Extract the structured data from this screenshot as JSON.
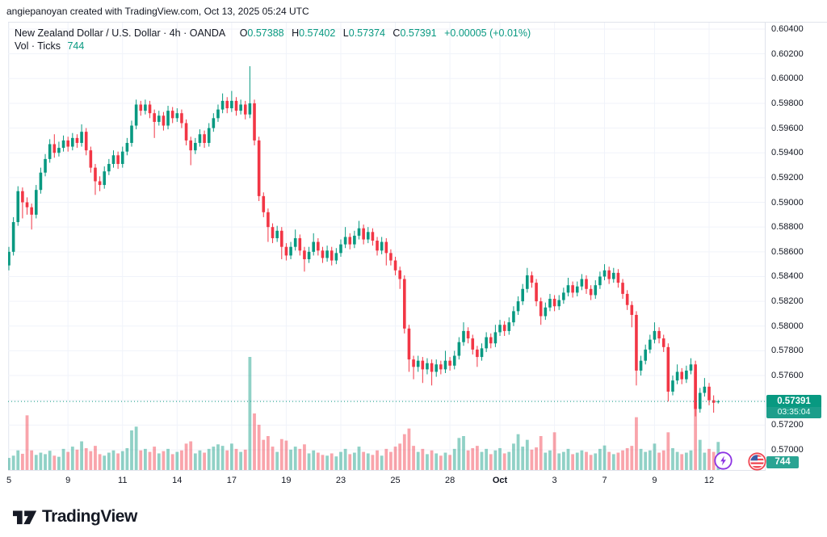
{
  "attribution": "angiepanoyan created with TradingView.com, Oct 13, 2025 05:24 UTC",
  "header": {
    "symbol_title": "New Zealand Dollar / U.S. Dollar · 4h · OANDA",
    "ohlc": {
      "o_label": "O",
      "o": "0.57388",
      "h_label": "H",
      "h": "0.57402",
      "l_label": "L",
      "l": "0.57374",
      "c_label": "C",
      "c": "0.57391",
      "change": "+0.00005 (+0.01%)"
    },
    "indicator_label": "Vol · Ticks",
    "indicator_value": "744"
  },
  "price_axis": {
    "labels": [
      "0.60400",
      "0.60200",
      "0.60000",
      "0.59800",
      "0.59600",
      "0.59400",
      "0.59200",
      "0.59000",
      "0.58800",
      "0.58600",
      "0.58400",
      "0.58200",
      "0.58000",
      "0.57800",
      "0.57600",
      "0.57200",
      "0.57000"
    ],
    "price_badge": {
      "price": "0.57391",
      "countdown": "03:35:04"
    },
    "volume_badge": "744"
  },
  "time_axis": {
    "ticks": [
      {
        "label": "5",
        "bar": 0
      },
      {
        "label": "9",
        "bar": 13
      },
      {
        "label": "11",
        "bar": 25
      },
      {
        "label": "14",
        "bar": 37
      },
      {
        "label": "17",
        "bar": 49
      },
      {
        "label": "19",
        "bar": 61
      },
      {
        "label": "23",
        "bar": 73
      },
      {
        "label": "25",
        "bar": 85
      },
      {
        "label": "28",
        "bar": 97
      },
      {
        "label": "Oct",
        "bar": 108,
        "bold": true
      },
      {
        "label": "3",
        "bar": 120
      },
      {
        "label": "7",
        "bar": 131
      },
      {
        "label": "9",
        "bar": 142
      },
      {
        "label": "12",
        "bar": 154
      }
    ]
  },
  "footer": {
    "logo_text": "TradingView"
  },
  "colors": {
    "up": "#089981",
    "down": "#f23645",
    "grid": "#f0f3fa",
    "border": "#e0e3eb",
    "text": "#131722",
    "accent": "#089981",
    "price_line": "#089981",
    "purple_icon": "#8c32e3",
    "flag_ring": "#ef4551",
    "flag_blue": "#3c5da8"
  },
  "chart_data": {
    "type": "candlestick",
    "title": "New Zealand Dollar / U.S. Dollar",
    "timeframe": "4h",
    "exchange": "OANDA",
    "volume_indicator": "Vol · Ticks",
    "current_price": 0.57391,
    "current_volume": 744,
    "price_axis_range": [
      0.57,
      0.604
    ],
    "grid_step": 0.002,
    "x_range_labels": [
      "Sep 5",
      "Oct 13"
    ],
    "candles": [
      [
        0.5849,
        0.5864,
        0.5845,
        0.586
      ],
      [
        0.586,
        0.5888,
        0.5857,
        0.5884
      ],
      [
        0.5884,
        0.5913,
        0.5881,
        0.5909
      ],
      [
        0.5909,
        0.5912,
        0.5887,
        0.59
      ],
      [
        0.59,
        0.5904,
        0.589,
        0.5896
      ],
      [
        0.5896,
        0.5899,
        0.5878,
        0.589
      ],
      [
        0.589,
        0.5914,
        0.5887,
        0.591
      ],
      [
        0.591,
        0.5928,
        0.5907,
        0.5924
      ],
      [
        0.5924,
        0.5939,
        0.5921,
        0.5935
      ],
      [
        0.5935,
        0.5951,
        0.5932,
        0.5947
      ],
      [
        0.5947,
        0.5955,
        0.5936,
        0.594
      ],
      [
        0.594,
        0.5949,
        0.5937,
        0.5944
      ],
      [
        0.5944,
        0.5954,
        0.5941,
        0.595
      ],
      [
        0.595,
        0.5953,
        0.5941,
        0.5945
      ],
      [
        0.5945,
        0.5956,
        0.5942,
        0.5952
      ],
      [
        0.5952,
        0.5955,
        0.5944,
        0.5948
      ],
      [
        0.5948,
        0.5963,
        0.5945,
        0.5957
      ],
      [
        0.5957,
        0.596,
        0.5938,
        0.5942
      ],
      [
        0.5942,
        0.5945,
        0.5924,
        0.5928
      ],
      [
        0.5928,
        0.5931,
        0.5906,
        0.5917
      ],
      [
        0.5917,
        0.5921,
        0.5909,
        0.5914
      ],
      [
        0.5914,
        0.5929,
        0.5911,
        0.5925
      ],
      [
        0.5925,
        0.5935,
        0.5922,
        0.5931
      ],
      [
        0.5931,
        0.5942,
        0.5928,
        0.5938
      ],
      [
        0.5938,
        0.5941,
        0.5927,
        0.5931
      ],
      [
        0.5931,
        0.5945,
        0.5928,
        0.5941
      ],
      [
        0.5941,
        0.5952,
        0.5938,
        0.5948
      ],
      [
        0.5948,
        0.5966,
        0.5945,
        0.5962
      ],
      [
        0.5962,
        0.5983,
        0.5959,
        0.5979
      ],
      [
        0.5979,
        0.5982,
        0.597,
        0.5974
      ],
      [
        0.5974,
        0.5983,
        0.5971,
        0.5979
      ],
      [
        0.5979,
        0.5982,
        0.5968,
        0.5972
      ],
      [
        0.5972,
        0.5975,
        0.5952,
        0.5965
      ],
      [
        0.5965,
        0.5974,
        0.5962,
        0.597
      ],
      [
        0.597,
        0.5973,
        0.5958,
        0.5962
      ],
      [
        0.5962,
        0.5978,
        0.5959,
        0.5974
      ],
      [
        0.5974,
        0.5977,
        0.5964,
        0.5968
      ],
      [
        0.5968,
        0.5976,
        0.5965,
        0.5972
      ],
      [
        0.5972,
        0.5975,
        0.596,
        0.5964
      ],
      [
        0.5964,
        0.5967,
        0.5946,
        0.595
      ],
      [
        0.595,
        0.5953,
        0.593,
        0.5942
      ],
      [
        0.5942,
        0.5952,
        0.5939,
        0.5948
      ],
      [
        0.5948,
        0.5959,
        0.5945,
        0.5955
      ],
      [
        0.5955,
        0.5958,
        0.5944,
        0.5948
      ],
      [
        0.5948,
        0.5964,
        0.5945,
        0.596
      ],
      [
        0.596,
        0.5972,
        0.5957,
        0.5968
      ],
      [
        0.5968,
        0.5979,
        0.5965,
        0.5975
      ],
      [
        0.5975,
        0.5988,
        0.5972,
        0.5982
      ],
      [
        0.5982,
        0.5985,
        0.5972,
        0.5976
      ],
      [
        0.5976,
        0.599,
        0.5973,
        0.5982
      ],
      [
        0.5982,
        0.5985,
        0.597,
        0.5974
      ],
      [
        0.5974,
        0.5983,
        0.5971,
        0.5979
      ],
      [
        0.5979,
        0.5982,
        0.5967,
        0.5971
      ],
      [
        0.5971,
        0.601,
        0.5968,
        0.598
      ],
      [
        0.598,
        0.5983,
        0.5946,
        0.595
      ],
      [
        0.595,
        0.5953,
        0.5901,
        0.5905
      ],
      [
        0.5905,
        0.5908,
        0.5888,
        0.5892
      ],
      [
        0.5892,
        0.5895,
        0.5868,
        0.588
      ],
      [
        0.588,
        0.5883,
        0.5867,
        0.5871
      ],
      [
        0.5871,
        0.5881,
        0.5868,
        0.5877
      ],
      [
        0.5877,
        0.588,
        0.5854,
        0.5864
      ],
      [
        0.5864,
        0.5867,
        0.5853,
        0.5857
      ],
      [
        0.5857,
        0.5868,
        0.5854,
        0.5864
      ],
      [
        0.5864,
        0.5878,
        0.5861,
        0.5871
      ],
      [
        0.5871,
        0.5874,
        0.5857,
        0.5861
      ],
      [
        0.5861,
        0.5864,
        0.5844,
        0.5854
      ],
      [
        0.5854,
        0.5864,
        0.5851,
        0.586
      ],
      [
        0.586,
        0.5875,
        0.5857,
        0.5868
      ],
      [
        0.5868,
        0.5871,
        0.5857,
        0.5861
      ],
      [
        0.5861,
        0.5864,
        0.5851,
        0.5855
      ],
      [
        0.5855,
        0.5865,
        0.5852,
        0.5861
      ],
      [
        0.5861,
        0.5864,
        0.5849,
        0.5853
      ],
      [
        0.5853,
        0.5863,
        0.585,
        0.5859
      ],
      [
        0.5859,
        0.587,
        0.5856,
        0.5866
      ],
      [
        0.5866,
        0.588,
        0.5863,
        0.5872
      ],
      [
        0.5872,
        0.5875,
        0.5862,
        0.5866
      ],
      [
        0.5866,
        0.5877,
        0.5863,
        0.5873
      ],
      [
        0.5873,
        0.5885,
        0.587,
        0.5879
      ],
      [
        0.5879,
        0.5882,
        0.5866,
        0.587
      ],
      [
        0.587,
        0.588,
        0.5867,
        0.5876
      ],
      [
        0.5876,
        0.5879,
        0.5865,
        0.5869
      ],
      [
        0.5869,
        0.5872,
        0.5857,
        0.5861
      ],
      [
        0.5861,
        0.5872,
        0.5858,
        0.5868
      ],
      [
        0.5868,
        0.5871,
        0.5849,
        0.5859
      ],
      [
        0.5859,
        0.5862,
        0.5849,
        0.5853
      ],
      [
        0.5853,
        0.5856,
        0.5841,
        0.5845
      ],
      [
        0.5845,
        0.5848,
        0.583,
        0.5838
      ],
      [
        0.5838,
        0.5841,
        0.5794,
        0.5798
      ],
      [
        0.5798,
        0.5801,
        0.5763,
        0.5773
      ],
      [
        0.5773,
        0.5776,
        0.5757,
        0.5767
      ],
      [
        0.5767,
        0.5776,
        0.5763,
        0.5772
      ],
      [
        0.5772,
        0.5775,
        0.5754,
        0.5765
      ],
      [
        0.5765,
        0.5774,
        0.5761,
        0.577
      ],
      [
        0.577,
        0.5773,
        0.5752,
        0.5763
      ],
      [
        0.5763,
        0.5773,
        0.5759,
        0.5769
      ],
      [
        0.5769,
        0.5772,
        0.5761,
        0.5765
      ],
      [
        0.5765,
        0.578,
        0.5762,
        0.5772
      ],
      [
        0.5772,
        0.5775,
        0.5764,
        0.5768
      ],
      [
        0.5768,
        0.578,
        0.5765,
        0.5776
      ],
      [
        0.5776,
        0.5791,
        0.5773,
        0.5787
      ],
      [
        0.5787,
        0.5803,
        0.5784,
        0.5796
      ],
      [
        0.5796,
        0.5799,
        0.5786,
        0.579
      ],
      [
        0.579,
        0.5793,
        0.5777,
        0.5781
      ],
      [
        0.5781,
        0.5784,
        0.5767,
        0.5775
      ],
      [
        0.5775,
        0.5786,
        0.5772,
        0.5782
      ],
      [
        0.5782,
        0.5795,
        0.5779,
        0.5791
      ],
      [
        0.5791,
        0.5794,
        0.5782,
        0.5786
      ],
      [
        0.5786,
        0.5801,
        0.5783,
        0.5795
      ],
      [
        0.5795,
        0.5805,
        0.5792,
        0.5801
      ],
      [
        0.5801,
        0.5804,
        0.5792,
        0.5796
      ],
      [
        0.5796,
        0.5807,
        0.5793,
        0.5803
      ],
      [
        0.5803,
        0.5816,
        0.58,
        0.5812
      ],
      [
        0.5812,
        0.5824,
        0.5809,
        0.582
      ],
      [
        0.582,
        0.5834,
        0.5817,
        0.583
      ],
      [
        0.583,
        0.5847,
        0.5827,
        0.5841
      ],
      [
        0.5841,
        0.5844,
        0.5831,
        0.5835
      ],
      [
        0.5835,
        0.5838,
        0.5816,
        0.582
      ],
      [
        0.582,
        0.5823,
        0.5801,
        0.5808
      ],
      [
        0.5808,
        0.5819,
        0.5805,
        0.5815
      ],
      [
        0.5815,
        0.5826,
        0.5812,
        0.5822
      ],
      [
        0.5822,
        0.5825,
        0.5812,
        0.5816
      ],
      [
        0.5816,
        0.5825,
        0.5813,
        0.5821
      ],
      [
        0.5821,
        0.5831,
        0.5818,
        0.5827
      ],
      [
        0.5827,
        0.5839,
        0.5824,
        0.5833
      ],
      [
        0.5833,
        0.5836,
        0.5823,
        0.5827
      ],
      [
        0.5827,
        0.5836,
        0.5824,
        0.5832
      ],
      [
        0.5832,
        0.5842,
        0.5829,
        0.5838
      ],
      [
        0.5838,
        0.5841,
        0.5826,
        0.583
      ],
      [
        0.583,
        0.5833,
        0.5821,
        0.5825
      ],
      [
        0.5825,
        0.5837,
        0.5822,
        0.5833
      ],
      [
        0.5833,
        0.5844,
        0.583,
        0.584
      ],
      [
        0.584,
        0.585,
        0.5837,
        0.5845
      ],
      [
        0.5845,
        0.5848,
        0.5834,
        0.5838
      ],
      [
        0.5838,
        0.5847,
        0.5835,
        0.5843
      ],
      [
        0.5843,
        0.5846,
        0.5831,
        0.5835
      ],
      [
        0.5835,
        0.5838,
        0.5822,
        0.5826
      ],
      [
        0.5826,
        0.5829,
        0.5813,
        0.5817
      ],
      [
        0.5817,
        0.582,
        0.5799,
        0.5809
      ],
      [
        0.5809,
        0.5812,
        0.5752,
        0.5764
      ],
      [
        0.5764,
        0.5776,
        0.576,
        0.5772
      ],
      [
        0.5772,
        0.5785,
        0.5769,
        0.5781
      ],
      [
        0.5781,
        0.5793,
        0.5778,
        0.5789
      ],
      [
        0.5789,
        0.5803,
        0.5786,
        0.5796
      ],
      [
        0.5796,
        0.5799,
        0.5786,
        0.579
      ],
      [
        0.579,
        0.5793,
        0.5779,
        0.5783
      ],
      [
        0.5783,
        0.5786,
        0.5739,
        0.5747
      ],
      [
        0.5747,
        0.576,
        0.5744,
        0.5756
      ],
      [
        0.5756,
        0.5769,
        0.5753,
        0.5763
      ],
      [
        0.5763,
        0.5766,
        0.5753,
        0.5757
      ],
      [
        0.5757,
        0.5768,
        0.5754,
        0.5764
      ],
      [
        0.5764,
        0.5774,
        0.5761,
        0.5769
      ],
      [
        0.5769,
        0.5772,
        0.5727,
        0.5733
      ],
      [
        0.5733,
        0.575,
        0.573,
        0.5746
      ],
      [
        0.5746,
        0.5758,
        0.5743,
        0.5751
      ],
      [
        0.5751,
        0.5754,
        0.5736,
        0.574
      ],
      [
        0.574,
        0.5744,
        0.573,
        0.5738
      ],
      [
        0.57388,
        0.57402,
        0.57374,
        0.57391
      ]
    ],
    "volumes": [
      320,
      380,
      520,
      430,
      1450,
      520,
      400,
      460,
      420,
      510,
      380,
      350,
      560,
      480,
      620,
      540,
      760,
      580,
      500,
      640,
      420,
      380,
      460,
      520,
      440,
      500,
      580,
      1050,
      1150,
      520,
      560,
      480,
      620,
      440,
      500,
      560,
      420,
      480,
      520,
      700,
      760,
      440,
      520,
      460,
      560,
      620,
      680,
      640,
      520,
      700,
      560,
      480,
      540,
      3000,
      1500,
      1200,
      800,
      900,
      620,
      480,
      820,
      780,
      540,
      620,
      560,
      680,
      440,
      520,
      460,
      400,
      380,
      440,
      360,
      480,
      560,
      420,
      460,
      620,
      480,
      440,
      400,
      520,
      380,
      560,
      480,
      620,
      700,
      950,
      1100,
      640,
      480,
      560,
      420,
      520,
      440,
      380,
      460,
      400,
      560,
      850,
      900,
      520,
      580,
      640,
      480,
      560,
      420,
      520,
      580,
      440,
      480,
      700,
      950,
      620,
      800,
      540,
      600,
      900,
      460,
      520,
      1000,
      440,
      480,
      560,
      420,
      460,
      520,
      480,
      400,
      440,
      560,
      650,
      480,
      420,
      460,
      520,
      580,
      640,
      1400,
      560,
      480,
      520,
      700,
      460,
      520,
      1000,
      580,
      480,
      420,
      460,
      520,
      2600,
      800,
      460,
      560,
      480,
      744
    ]
  }
}
